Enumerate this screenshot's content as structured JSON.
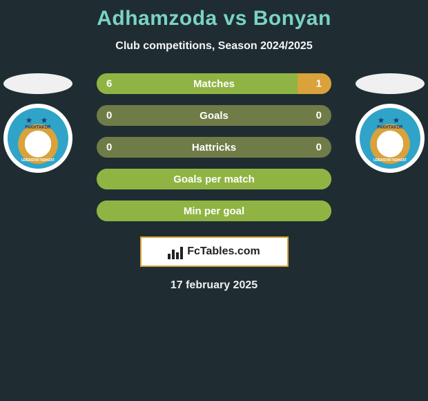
{
  "colors": {
    "page_bg": "#1f2d33",
    "title_color": "#7bd3c4",
    "subtitle_color": "#f5f5f5",
    "brand_border": "#d9a23a",
    "brand_bg": "#ffffff"
  },
  "title": "Adhamzoda vs Bonyan",
  "subtitle": "Club competitions, Season 2024/2025",
  "badges": {
    "left": {
      "name_top": "PAKHTAKOR",
      "name_bottom": "UZBEKISTAN TASHKENT"
    },
    "right": {
      "name_top": "PAKHTAKOR",
      "name_bottom": "UZBEKISTAN TASHKENT"
    }
  },
  "bars": {
    "track_bg": "#6f7c47",
    "left_fill": "#8fb443",
    "right_fill": "#d9a23a",
    "rows": [
      {
        "label": "Matches",
        "left_val": "6",
        "right_val": "1",
        "left_pct": 85.7,
        "right_pct": 14.3
      },
      {
        "label": "Goals",
        "left_val": "0",
        "right_val": "0",
        "left_pct": 0,
        "right_pct": 0
      },
      {
        "label": "Hattricks",
        "left_val": "0",
        "right_val": "0",
        "left_pct": 0,
        "right_pct": 0
      },
      {
        "label": "Goals per match",
        "left_val": "",
        "right_val": "",
        "left_pct": 100,
        "right_pct": 0
      },
      {
        "label": "Min per goal",
        "left_val": "",
        "right_val": "",
        "left_pct": 100,
        "right_pct": 0
      }
    ]
  },
  "brand_text": "FcTables.com",
  "date": "17 february 2025"
}
